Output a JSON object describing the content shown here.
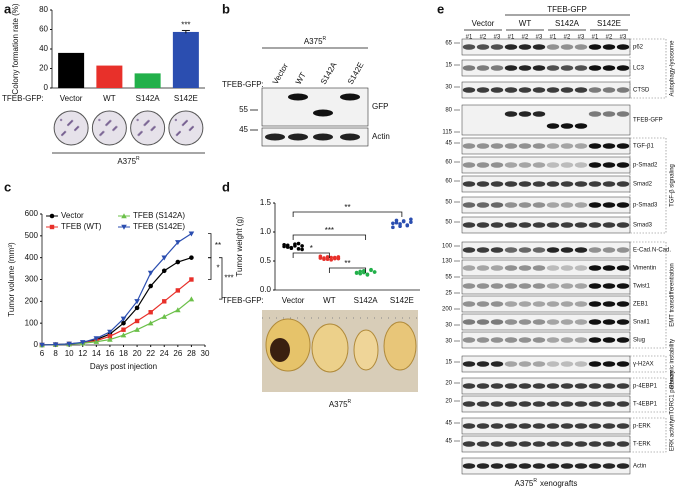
{
  "panel_labels": [
    "a",
    "b",
    "c",
    "d",
    "e"
  ],
  "chart_data": [
    {
      "type": "bar",
      "y_label": "Colony formation rate (%)",
      "group_label": "TFEB-GFP:",
      "categories": [
        "Vector",
        "WT",
        "S142A",
        "S142E"
      ],
      "values": [
        36,
        23,
        15,
        57.5
      ],
      "errors": [
        null,
        null,
        null,
        1.5
      ],
      "colors": [
        "#000000",
        "#e8302a",
        "#22b04a",
        "#2b4eb0"
      ],
      "ylim": [
        0,
        80
      ],
      "yticks": [
        0,
        20,
        40,
        60,
        80
      ],
      "annotation": "***",
      "caption": {
        "base": "A375",
        "sup": "R"
      }
    },
    {
      "type": "line",
      "y_label": "Tumor volume (mm³)",
      "x_label": "Days post injection",
      "x": [
        6,
        8,
        10,
        12,
        14,
        16,
        18,
        20,
        22,
        24,
        26,
        28
      ],
      "xlim": [
        6,
        30
      ],
      "xticks": [
        6,
        8,
        10,
        12,
        14,
        16,
        18,
        20,
        22,
        24,
        26,
        28,
        30
      ],
      "ylim": [
        0,
        600
      ],
      "yticks": [
        0,
        100,
        200,
        300,
        400,
        500,
        600
      ],
      "series": [
        {
          "name": "Vector",
          "color": "#000000",
          "marker": "circle",
          "values": [
            0,
            2,
            5,
            10,
            25,
            50,
            100,
            170,
            270,
            340,
            380,
            400
          ]
        },
        {
          "name": "TFEB (WT)",
          "color": "#e8302a",
          "marker": "square",
          "values": [
            0,
            2,
            5,
            10,
            20,
            40,
            70,
            110,
            150,
            200,
            250,
            300
          ]
        },
        {
          "name": "TFEB (S142A)",
          "color": "#6cc04a",
          "marker": "triangle-up",
          "values": [
            0,
            2,
            4,
            8,
            15,
            25,
            45,
            70,
            100,
            130,
            160,
            210
          ]
        },
        {
          "name": "TFEB (S142E)",
          "color": "#2b4eb0",
          "marker": "triangle-down",
          "values": [
            0,
            2,
            5,
            12,
            30,
            60,
            120,
            200,
            330,
            400,
            470,
            510
          ]
        }
      ],
      "annotations": [
        "**",
        "*",
        "***"
      ]
    },
    {
      "type": "dot",
      "y_label": "Tumor weight (g)",
      "group_label": "TFEB-GFP:",
      "categories": [
        "Vector",
        "WT",
        "S142A",
        "S142E"
      ],
      "colors": [
        "#000000",
        "#e8302a",
        "#22b04a",
        "#2b4eb0"
      ],
      "values": [
        [
          0.78,
          0.74,
          0.72,
          0.76,
          0.8,
          0.7,
          0.75,
          0.77,
          0.73,
          0.79,
          0.71,
          0.76
        ],
        [
          0.55,
          0.53,
          0.57,
          0.52,
          0.56,
          0.54,
          0.58,
          0.55,
          0.53,
          0.56,
          0.54,
          0.57
        ],
        [
          0.3,
          0.28,
          0.33,
          0.27,
          0.35,
          0.31,
          0.29,
          0.32,
          0.3,
          0.26,
          0.34,
          0.31
        ],
        [
          1.15,
          1.2,
          1.1,
          1.18,
          1.12,
          1.22,
          1.08,
          1.16,
          1.14,
          1.19,
          1.11,
          1.17
        ]
      ],
      "ylim": [
        0,
        1.5
      ],
      "yticks": [
        {
          "value": 0,
          "label": "0.0"
        },
        {
          "value": 0.5,
          "label": "0.5"
        },
        {
          "value": 1,
          "label": "1.0"
        },
        {
          "value": 1.5,
          "label": "1.5"
        }
      ],
      "annotations": [
        "**",
        "***",
        "*",
        "**"
      ],
      "caption": {
        "base": "A375",
        "sup": "R"
      }
    }
  ],
  "blot_b": {
    "title": {
      "base": "A375",
      "sup": "R"
    },
    "group_label": "TFEB-GFP:",
    "lanes": [
      "Vector",
      "WT",
      "S142A",
      "S142E"
    ],
    "markers": [
      "55",
      "45"
    ],
    "proteins": [
      "GFP",
      "Actin"
    ]
  },
  "blot_e": {
    "construct": "TFEB-GFP",
    "groups": [
      "Vector",
      "WT",
      "S142A",
      "S142E"
    ],
    "replicates": [
      "#1",
      "#2",
      "#3"
    ],
    "proteins": [
      "p62",
      "LC3",
      "CTSD",
      "TFEB-GFP",
      "TGF-β1",
      "p-Smad2",
      "Smad2",
      "p-Smad3",
      "Smad3",
      "E-Cad.",
      "Vimentin",
      "Twist1",
      "ZEB1",
      "Snail1",
      "Slug",
      "γ-H2AX",
      "p-4EBP1",
      "T-4EBP1",
      "p-ERK",
      "T-ERK",
      "Actin"
    ],
    "extra_protein": "N-Cad.",
    "markers": [
      "65",
      "15",
      "30",
      "80",
      "115",
      "45",
      "60",
      "60",
      "50",
      "50",
      "100",
      "130",
      "55",
      "25",
      "200",
      "30",
      "30",
      "15",
      "20",
      "20",
      "45",
      "45"
    ],
    "pathways": [
      "Autophagy-lysosome",
      "TGF-β signaling",
      "EMT transdifferentiation",
      "Genomic instability",
      "mTORC1 pathway",
      "ERK activity"
    ],
    "caption": {
      "base": "A375",
      "sup": "R",
      "rest": "xenografts"
    }
  }
}
